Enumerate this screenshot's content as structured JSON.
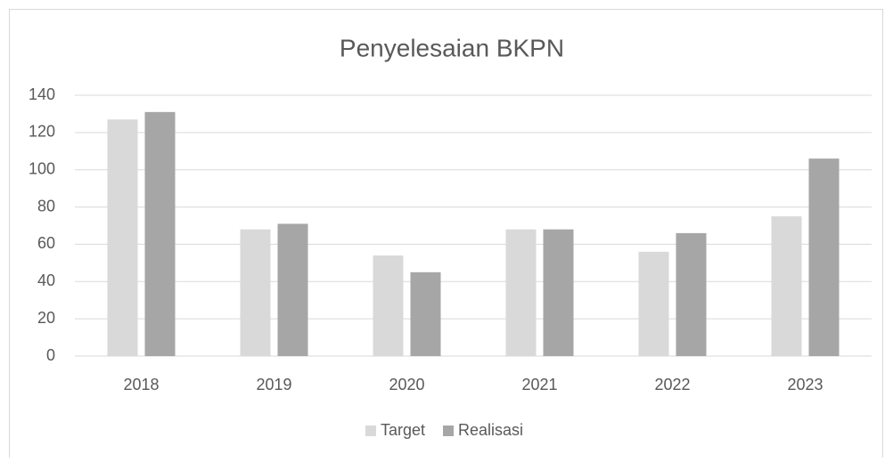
{
  "chart_data": {
    "type": "bar",
    "title": "Penyelesaian BKPN",
    "categories": [
      "2018",
      "2019",
      "2020",
      "2021",
      "2022",
      "2023"
    ],
    "series": [
      {
        "name": "Target",
        "color": "#d9d9d9",
        "values": [
          127,
          68,
          54,
          68,
          56,
          75
        ]
      },
      {
        "name": "Realisasi",
        "color": "#a6a6a6",
        "values": [
          131,
          71,
          45,
          68,
          66,
          106
        ]
      }
    ],
    "ylim": [
      0,
      140
    ],
    "yticks": [
      0,
      20,
      40,
      60,
      80,
      100,
      120,
      140
    ],
    "grid": true,
    "legend": "bottom"
  }
}
